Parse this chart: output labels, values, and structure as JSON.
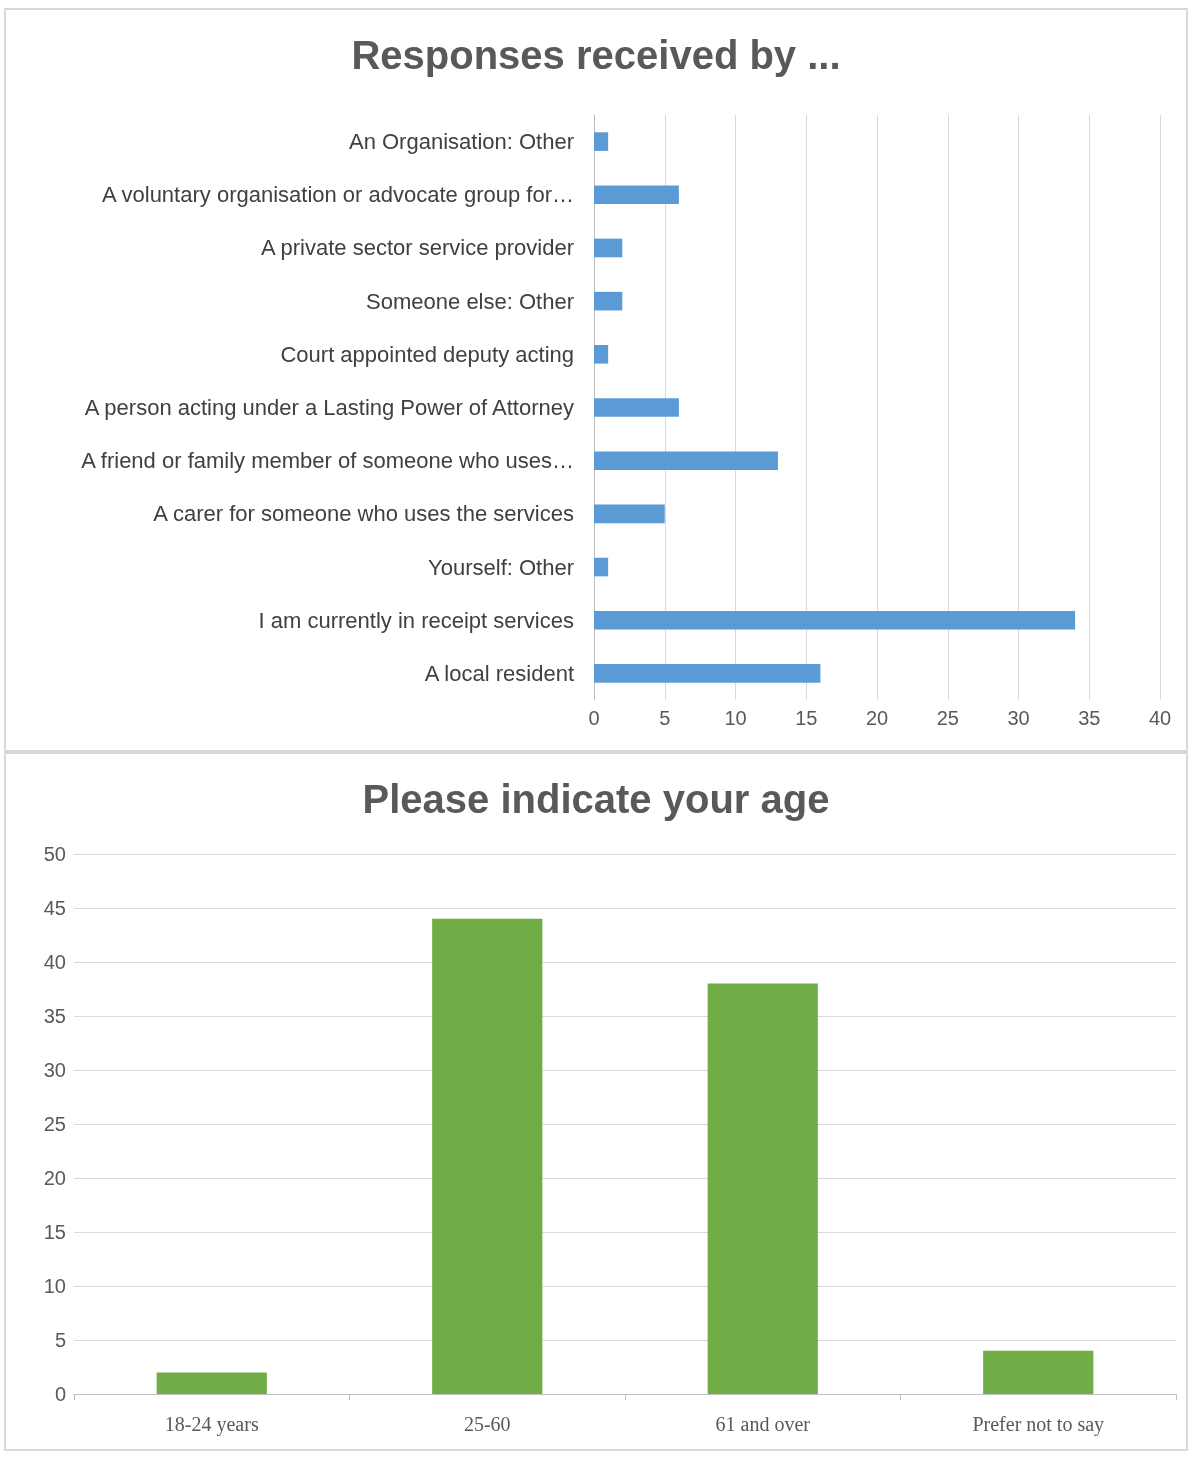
{
  "chart_data": [
    {
      "type": "bar",
      "title": "Responses received by ...",
      "orientation": "horizontal",
      "categories": [
        "An Organisation: Other",
        "A voluntary organisation or advocate group for…",
        "A private sector service provider",
        "Someone else: Other",
        "Court appointed deputy acting",
        "A person acting under a Lasting Power of Attorney",
        "A friend or family member of someone who uses…",
        "A carer for someone who uses the services",
        "Yourself: Other",
        "I am currently in receipt services",
        "A local resident"
      ],
      "values": [
        1,
        6,
        2,
        2,
        1,
        6,
        13,
        5,
        1,
        34,
        16
      ],
      "color": "#5b9bd5",
      "xlim": [
        0,
        40
      ],
      "xticks": [
        0,
        5,
        10,
        15,
        20,
        25,
        30,
        35,
        40
      ],
      "grid": "x"
    },
    {
      "type": "bar",
      "title": "Please indicate your age",
      "categories": [
        "18-24 years",
        "25-60",
        "61 and over",
        "Prefer not to say"
      ],
      "values": [
        2,
        44,
        38,
        4
      ],
      "color": "#70ad47",
      "ylim": [
        0,
        50
      ],
      "yticks": [
        0,
        5,
        10,
        15,
        20,
        25,
        30,
        35,
        40,
        45,
        50
      ],
      "grid": "y"
    }
  ]
}
